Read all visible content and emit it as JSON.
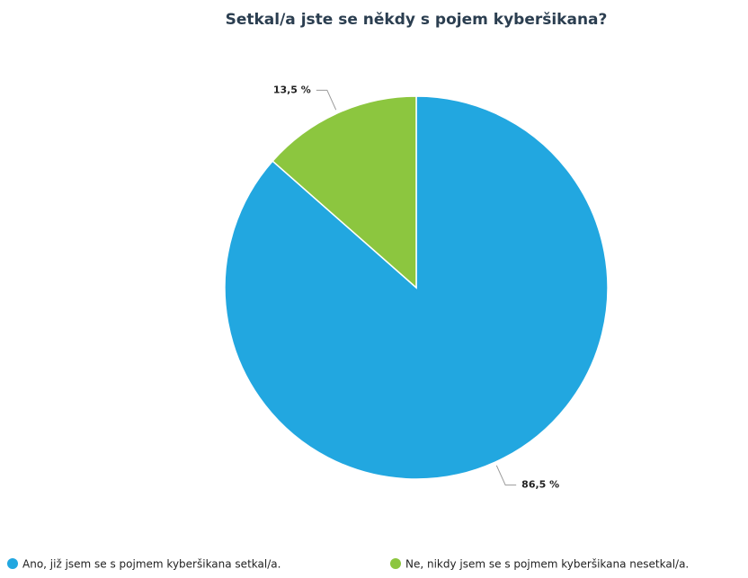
{
  "chart_data": {
    "type": "pie",
    "title": "Setkal/a jste se někdy s pojem kyberšikana?",
    "categories": [
      "Ano, již jsem se s pojmem kyberšikana setkal/a.",
      "Ne, nikdy jsem se s pojmem kyberšikana nesetkal/a."
    ],
    "values": [
      86.5,
      13.5
    ],
    "value_labels": [
      "86,5 %",
      "13,5 %"
    ],
    "colors": [
      "#22a7e0",
      "#8cc63f"
    ],
    "legend": "bottom"
  }
}
